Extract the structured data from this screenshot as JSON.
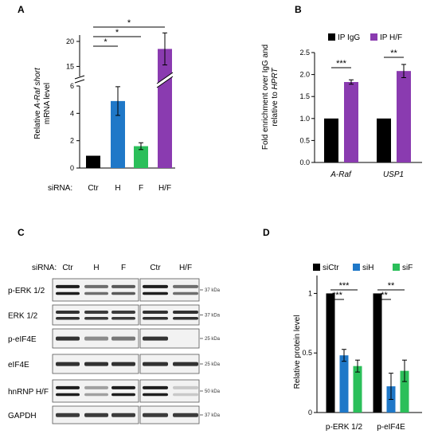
{
  "panels": {
    "a": {
      "letter": "A",
      "siRNA_label": "siRNA:",
      "chart_data": {
        "type": "bar",
        "categories": [
          "Ctr",
          "H",
          "F",
          "H/F"
        ],
        "values": [
          0.9,
          4.9,
          1.6,
          18.5
        ],
        "errors": [
          0,
          1.05,
          0.25,
          3.2
        ],
        "colors": [
          "#000000",
          "#1f78c8",
          "#2bbf5a",
          "#8a3bb0"
        ],
        "ylabel_line1": "Relative ",
        "ylabel_italic": "A-Raf short",
        "ylabel_line2": "mRNA level",
        "y_ticks_lower": [
          "0",
          "2",
          "4",
          "6"
        ],
        "y_ticks_upper": [
          "15",
          "20"
        ],
        "y_break": [
          6,
          13
        ],
        "significance": [
          {
            "from": "Ctr",
            "to": "H",
            "label": "*"
          },
          {
            "from": "Ctr",
            "to": "F",
            "label": "*"
          },
          {
            "from": "Ctr",
            "to": "H/F",
            "label": "*"
          }
        ]
      }
    },
    "b": {
      "letter": "B",
      "chart_data": {
        "type": "bar",
        "categories": [
          "A-Raf",
          "USP1"
        ],
        "series": [
          {
            "name": "IP IgG",
            "values": [
              1.0,
              1.0
            ],
            "errors": [
              0,
              0
            ],
            "color": "#000000"
          },
          {
            "name": "IP H/F",
            "values": [
              1.83,
              2.08
            ],
            "errors": [
              0.05,
              0.15
            ],
            "color": "#8a3bb0"
          }
        ],
        "ylabel_line1": "Fold enrichment over IgG and",
        "ylabel_line2_prefix": "relative to ",
        "ylabel_line2_italic": "HPRT",
        "ylim": [
          0,
          2.5
        ],
        "y_ticks": [
          "0.0",
          "0.5",
          "1.0",
          "1.5",
          "2.0",
          "2.5"
        ],
        "significance": [
          "***",
          "**"
        ]
      }
    },
    "c": {
      "letter": "C",
      "siRNA_label": "siRNA:",
      "lanes_left": [
        "Ctr",
        "H",
        "F"
      ],
      "lanes_right": [
        "Ctr",
        "H/F"
      ],
      "rows": [
        {
          "label": "p-ERK 1/2",
          "kda": "37 kDa"
        },
        {
          "label": "ERK 1/2",
          "kda": "37 kDa"
        },
        {
          "label": "p-eIF4E",
          "kda": "25 kDa"
        },
        {
          "label": "eIF4E",
          "kda": "25 kDa"
        },
        {
          "label": "hnRNP H/F",
          "kda": "50 kDa"
        },
        {
          "label": "GAPDH",
          "kda": "37 kDa"
        }
      ]
    },
    "d": {
      "letter": "D",
      "chart_data": {
        "type": "bar",
        "categories": [
          "p-ERK 1/2",
          "p-eIF4E"
        ],
        "series": [
          {
            "name": "siCtr",
            "values": [
              1.0,
              1.0
            ],
            "errors": [
              0,
              0
            ],
            "color": "#000000"
          },
          {
            "name": "siH",
            "values": [
              0.48,
              0.22
            ],
            "errors": [
              0.05,
              0.11
            ],
            "color": "#1f78c8"
          },
          {
            "name": "siF",
            "values": [
              0.39,
              0.35
            ],
            "errors": [
              0.05,
              0.09
            ],
            "color": "#2bbf5a"
          }
        ],
        "ylabel": "Relative protein level",
        "ylim": [
          0,
          1.15
        ],
        "y_ticks": [
          0,
          0.5,
          1
        ],
        "y_tick_labels": [
          "0",
          "0.5",
          "1"
        ],
        "significance_left": [
          "***",
          "***"
        ],
        "significance_right": [
          "**",
          "**"
        ]
      }
    }
  }
}
